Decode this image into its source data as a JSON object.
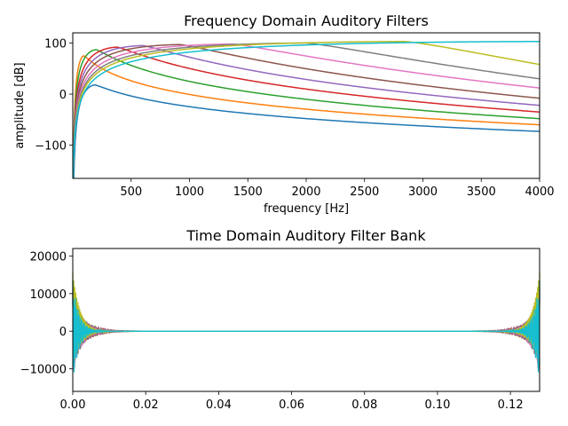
{
  "chart_data": [
    {
      "type": "line",
      "title": "Frequency Domain Auditory Filters",
      "xlabel": "frequency [Hz]",
      "ylabel": "amplitude [dB]",
      "xlim": [
        0,
        4000
      ],
      "ylim": [
        -165,
        120
      ],
      "x_ticks": [
        500,
        1000,
        1500,
        2000,
        2500,
        3000,
        3500,
        4000
      ],
      "y_ticks": [
        -100,
        0,
        100
      ],
      "grid": false,
      "legend": "none",
      "series": [
        {
          "color": "#1f77b4",
          "peak_hz": 190,
          "peak_db": 18,
          "end_db": -73
        },
        {
          "color": "#ff7f0e",
          "peak_hz": 95,
          "peak_db": 75,
          "end_db": -60
        },
        {
          "color": "#2ca02c",
          "peak_hz": 200,
          "peak_db": 87,
          "end_db": -48
        },
        {
          "color": "#d62728",
          "peak_hz": 380,
          "peak_db": 92,
          "end_db": -35
        },
        {
          "color": "#9467bd",
          "peak_hz": 600,
          "peak_db": 95,
          "end_db": -22
        },
        {
          "color": "#8c564b",
          "peak_hz": 920,
          "peak_db": 97,
          "end_db": -8
        },
        {
          "color": "#e377c2",
          "peak_hz": 1370,
          "peak_db": 98,
          "end_db": 12
        },
        {
          "color": "#7f7f7f",
          "peak_hz": 2000,
          "peak_db": 100,
          "end_db": 30
        },
        {
          "color": "#bcbd22",
          "peak_hz": 2850,
          "peak_db": 103,
          "end_db": 58
        },
        {
          "color": "#17becf",
          "peak_hz": 4000,
          "peak_db": 103,
          "end_db": 103
        }
      ]
    },
    {
      "type": "line",
      "title": "Time Domain Auditory Filter Bank",
      "xlabel": "",
      "ylabel": "",
      "xlim": [
        0,
        0.128
      ],
      "ylim": [
        -16000,
        22000
      ],
      "x_ticks": [
        0.0,
        0.02,
        0.04,
        0.06,
        0.08,
        0.1,
        0.12
      ],
      "x_tick_labels": [
        "0.00",
        "0.02",
        "0.04",
        "0.06",
        "0.08",
        "0.10",
        "0.12"
      ],
      "y_ticks": [
        -10000,
        0,
        10000,
        20000
      ],
      "y_tick_labels": [
        "−10000",
        "0",
        "10000",
        "20000"
      ],
      "grid": false,
      "legend": "none",
      "series": [
        {
          "color": "#1f77b4",
          "peak_amp": 3000
        },
        {
          "color": "#ff7f0e",
          "peak_amp": 5000
        },
        {
          "color": "#2ca02c",
          "peak_amp": 7000
        },
        {
          "color": "#d62728",
          "peak_amp": 8000
        },
        {
          "color": "#9467bd",
          "peak_amp": 9000
        },
        {
          "color": "#8c564b",
          "peak_amp": 10000
        },
        {
          "color": "#e377c2",
          "peak_amp": 11000
        },
        {
          "color": "#7f7f7f",
          "peak_amp": 12000
        },
        {
          "color": "#bcbd22",
          "peak_amp": 15500
        },
        {
          "color": "#17becf",
          "peak_amp": 13500
        }
      ]
    }
  ]
}
